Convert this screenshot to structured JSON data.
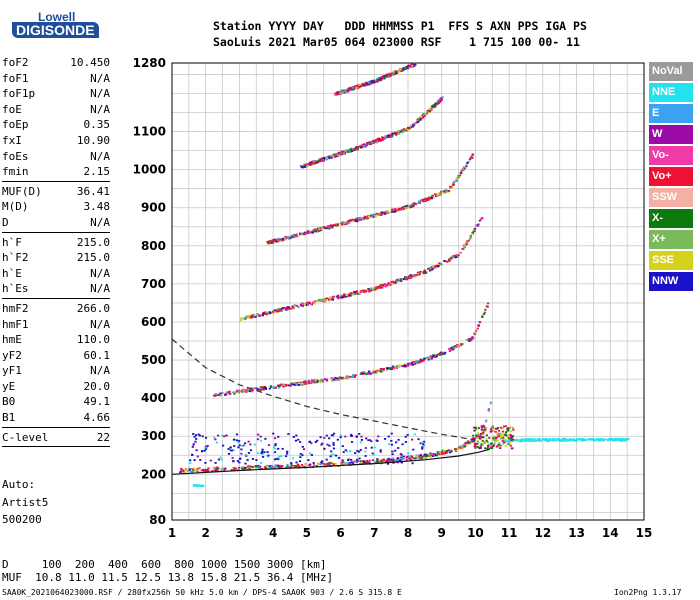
{
  "logo": {
    "line1": "Lowell",
    "line2": "DIGISONDE"
  },
  "header": {
    "line1": "Station YYYY DAY   DDD HHMMSS P1  FFS S AXN PPS IGA PS",
    "line2": "SaoLuis 2021 Mar05 064 023000 RSF    1 715 100 00- 11"
  },
  "params": [
    {
      "name": "foF2",
      "value": "10.450"
    },
    {
      "name": "foF1",
      "value": "N/A"
    },
    {
      "name": "foF1p",
      "value": "N/A"
    },
    {
      "name": "foE",
      "value": "N/A"
    },
    {
      "name": "foEp",
      "value": "0.35"
    },
    {
      "name": "fxI",
      "value": "10.90"
    },
    {
      "name": "foEs",
      "value": "N/A"
    },
    {
      "name": "fmin",
      "value": "2.15",
      "sep": true
    },
    {
      "name": "MUF(D)",
      "value": "36.41"
    },
    {
      "name": "M(D)",
      "value": "3.48"
    },
    {
      "name": "D",
      "value": "N/A",
      "sep": true
    },
    {
      "name": "h`F",
      "value": "215.0"
    },
    {
      "name": "h`F2",
      "value": "215.0"
    },
    {
      "name": "h`E",
      "value": "N/A"
    },
    {
      "name": "h`Es",
      "value": "N/A",
      "sep": true
    },
    {
      "name": "hmF2",
      "value": "266.0"
    },
    {
      "name": "hmF1",
      "value": "N/A"
    },
    {
      "name": "hmE",
      "value": "110.0"
    },
    {
      "name": "yF2",
      "value": "60.1"
    },
    {
      "name": "yF1",
      "value": "N/A"
    },
    {
      "name": "yE",
      "value": "20.0"
    },
    {
      "name": "B0",
      "value": "49.1"
    },
    {
      "name": "B1",
      "value": "4.66",
      "sep": true
    },
    {
      "name": "C-level",
      "value": "22",
      "sep": true
    }
  ],
  "auto": {
    "line1": "Auto:",
    "line2": "Artist5",
    "line3": "500200"
  },
  "legend": [
    {
      "label": "NoVal",
      "color": "#9a9a9a"
    },
    {
      "label": "NNE",
      "color": "#22e2ee"
    },
    {
      "label": "E",
      "color": "#3aa2f0"
    },
    {
      "label": "W",
      "color": "#9c0aa6"
    },
    {
      "label": "Vo-",
      "color": "#f03aa8"
    },
    {
      "label": "Vo+",
      "color": "#ee1133"
    },
    {
      "label": "SSW",
      "color": "#f4b0a6"
    },
    {
      "label": "X-",
      "color": "#0d7a0d"
    },
    {
      "label": "X+",
      "color": "#7bba5a"
    },
    {
      "label": "SSE",
      "color": "#d6d11a"
    },
    {
      "label": "NNW",
      "color": "#1a10c8"
    }
  ],
  "footer": {
    "line1": "D     100  200  400  600  800 1000 1500 3000 [km]",
    "line2": "MUF  10.8 11.0 11.5 12.5 13.8 15.8 21.5 36.4 [MHz]",
    "line3": "SAA0K_2021064023000.RSF / 280fx256h 50 kHz 5.0 km / DPS-4 SAA0K 903 / 2.6 S 315.8 E",
    "version": "Ion2Png 1.3.17"
  },
  "chart_data": {
    "type": "scatter",
    "xlim": [
      1,
      15
    ],
    "xticks": [
      1,
      2,
      3,
      4,
      5,
      6,
      7,
      8,
      9,
      10,
      11,
      12,
      13,
      14,
      15
    ],
    "ylim": [
      80,
      1280
    ],
    "yticks": [
      80,
      200,
      300,
      400,
      500,
      600,
      700,
      800,
      900,
      1000,
      1100,
      1280
    ],
    "grid": true,
    "traces": [
      {
        "mode": 1,
        "f": [
          1.2,
          3,
          5,
          7,
          8.5,
          9.5,
          10.2,
          10.45
        ],
        "h": [
          212,
          218,
          225,
          235,
          250,
          270,
          310,
          400
        ]
      },
      {
        "mode": 2,
        "f": [
          2.2,
          4,
          6,
          8,
          9,
          9.9,
          10.35
        ],
        "h": [
          410,
          432,
          455,
          490,
          520,
          560,
          650
        ]
      },
      {
        "mode": 3,
        "f": [
          3,
          5,
          7,
          8.5,
          9.5,
          10.2
        ],
        "h": [
          610,
          650,
          690,
          735,
          780,
          880
        ]
      },
      {
        "mode": 4,
        "f": [
          3.8,
          6,
          8,
          9.2,
          9.9
        ],
        "h": [
          810,
          860,
          905,
          950,
          1040
        ]
      },
      {
        "mode": 5,
        "f": [
          4.8,
          6.5,
          8,
          9
        ],
        "h": [
          1010,
          1060,
          1110,
          1190
        ]
      },
      {
        "mode": 6,
        "f": [
          5.8,
          7,
          8.2
        ],
        "h": [
          1200,
          1235,
          1280
        ]
      },
      {
        "mode": "nne",
        "f": [
          10.8,
          11.5,
          12.5,
          13.5,
          14.5
        ],
        "h": [
          290,
          292,
          293,
          293,
          293
        ]
      },
      {
        "mode": "low",
        "f": [
          1.6,
          1.9
        ],
        "h": [
          173,
          172
        ]
      }
    ],
    "dashed_curve": {
      "f": [
        1,
        2,
        3,
        4,
        5,
        6,
        7,
        8,
        9,
        10
      ],
      "h": [
        555,
        480,
        435,
        405,
        378,
        357,
        340,
        322,
        305,
        290
      ]
    },
    "solid_curve": {
      "f": [
        1,
        3,
        5,
        7,
        8.5,
        9.5,
        10.1,
        10.4,
        10.45
      ],
      "h": [
        200,
        210,
        218,
        228,
        238,
        248,
        258,
        265,
        270
      ]
    }
  }
}
